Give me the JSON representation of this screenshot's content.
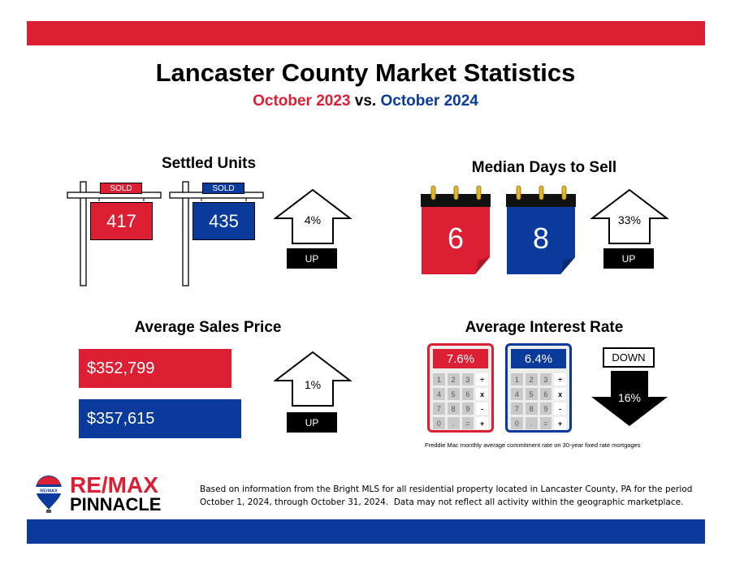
{
  "header": {
    "title": "Lancaster County Market Statistics",
    "period_2023": "October 2023",
    "vs": " vs. ",
    "period_2024": "October 2024"
  },
  "settled_units": {
    "title": "Settled Units",
    "sign_label": "SOLD",
    "value_2023": "417",
    "value_2024": "435",
    "change": "4%",
    "direction": "UP"
  },
  "median_days": {
    "title": "Median Days to Sell",
    "value_2023": "6",
    "value_2024": "8",
    "change": "33%",
    "direction": "UP"
  },
  "avg_price": {
    "title": "Average Sales Price",
    "value_2023": "$352,799",
    "value_2024": "$357,615",
    "change": "1%",
    "direction": "UP"
  },
  "interest_rate": {
    "title": "Average Interest Rate",
    "value_2023": "7.6%",
    "value_2024": "6.4%",
    "change": "16%",
    "direction": "DOWN",
    "keys": [
      "1",
      "2",
      "3",
      "÷",
      "4",
      "5",
      "6",
      "x",
      "7",
      "8",
      "9",
      "-",
      "0",
      ".",
      "=",
      "+"
    ],
    "footnote": "Freddie Mac monthly average commitment rate on 30-year fixed rate mortgages"
  },
  "footer": {
    "logo_line1": "RE/MAX",
    "logo_line2": "PINNACLE",
    "balloon_text": "RE/MAX",
    "disclaimer_line1": "Based on information from the Bright MLS for all residential property located in Lancaster County, PA for the period",
    "disclaimer_line2": "October 1, 2024, through October 31, 2024.  Data may not reflect all activity within the geographic marketplace."
  },
  "colors": {
    "red": "#dd1f34",
    "blue": "#0a3a9c"
  }
}
